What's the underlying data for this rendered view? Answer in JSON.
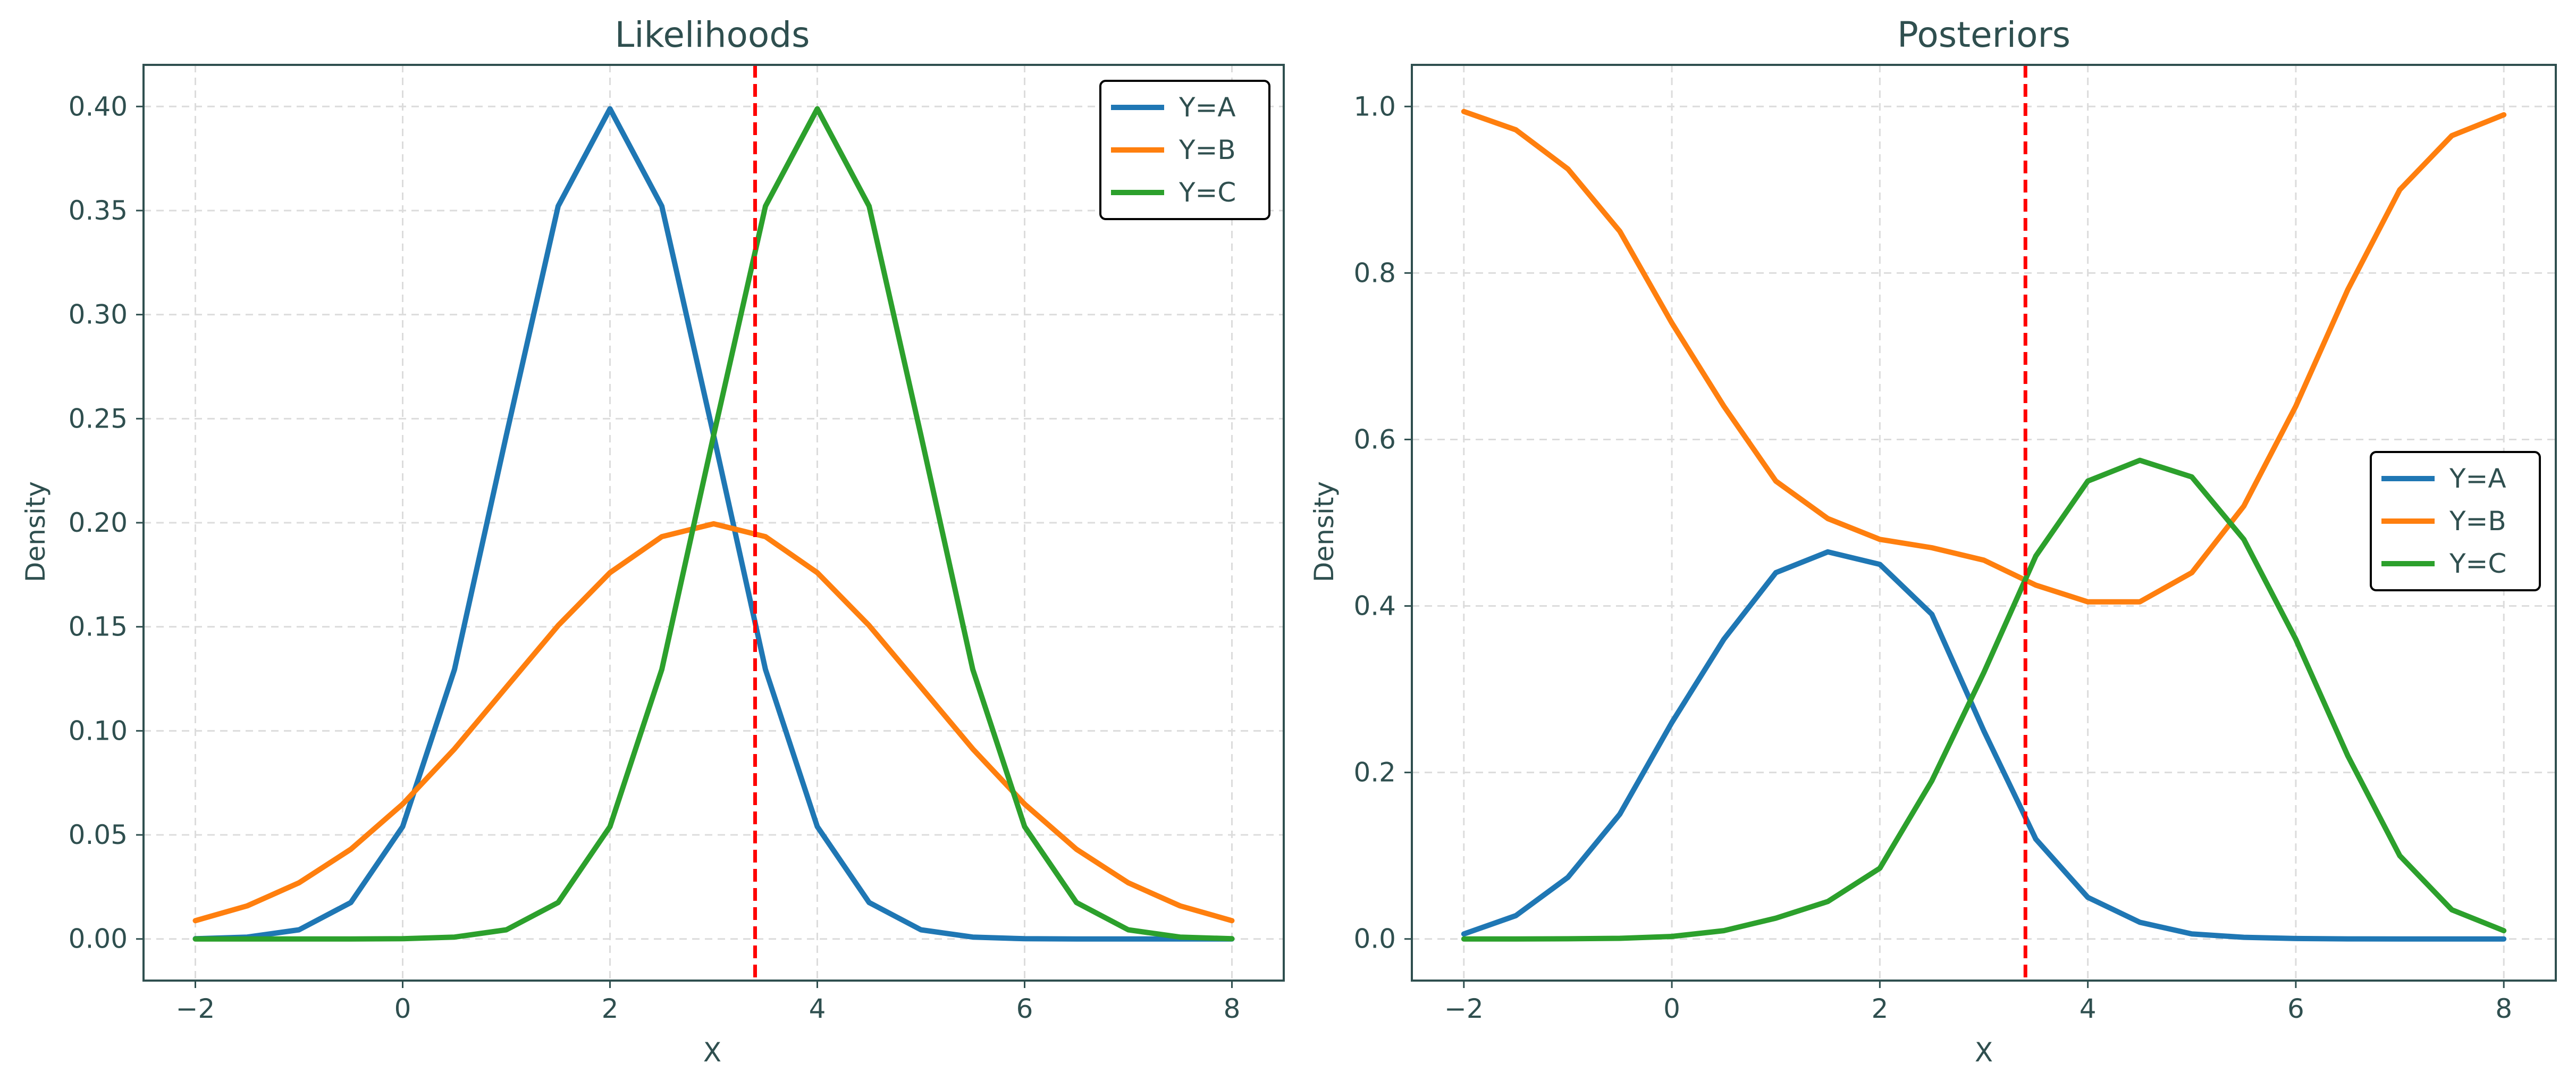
{
  "colors": {
    "series": {
      "Y=A": "#1f77b4",
      "Y=B": "#ff7f0e",
      "Y=C": "#2ca02c"
    },
    "threshold": "#ff0000",
    "axis": "#2f4f4f",
    "grid": "#dcdcdc"
  },
  "chart_data": [
    {
      "type": "line",
      "title": "Likelihoods",
      "xlabel": "X",
      "ylabel": "Density",
      "xlim": [
        -2.5,
        8.5
      ],
      "ylim": [
        -0.02,
        0.42
      ],
      "xticks": [
        -2,
        0,
        2,
        4,
        6,
        8
      ],
      "xtick_labels": [
        "−2",
        "0",
        "2",
        "4",
        "6",
        "8"
      ],
      "yticks": [
        0.0,
        0.05,
        0.1,
        0.15,
        0.2,
        0.25,
        0.3,
        0.35,
        0.4
      ],
      "ytick_labels": [
        "0.00",
        "0.05",
        "0.10",
        "0.15",
        "0.20",
        "0.25",
        "0.30",
        "0.35",
        "0.40"
      ],
      "grid": true,
      "legend": "top-right",
      "threshold_x": 3.4,
      "x": [
        -2,
        -1.5,
        -1,
        -0.5,
        0,
        0.5,
        1,
        1.5,
        2,
        2.5,
        3,
        3.5,
        4,
        4.5,
        5,
        5.5,
        6,
        6.5,
        7,
        7.5,
        8
      ],
      "series": [
        {
          "name": "Y=A",
          "values": [
            0.0001,
            0.0009,
            0.0044,
            0.0175,
            0.054,
            0.1295,
            0.242,
            0.3521,
            0.3989,
            0.3521,
            0.242,
            0.1295,
            0.054,
            0.0175,
            0.0044,
            0.0009,
            0.0001,
            0.0,
            0.0,
            0.0,
            0.0
          ]
        },
        {
          "name": "Y=B",
          "values": [
            0.0088,
            0.0159,
            0.027,
            0.0431,
            0.0648,
            0.0913,
            0.121,
            0.1506,
            0.176,
            0.1933,
            0.1995,
            0.1933,
            0.176,
            0.1506,
            0.121,
            0.0913,
            0.0648,
            0.0431,
            0.027,
            0.0159,
            0.0088
          ]
        },
        {
          "name": "Y=C",
          "values": [
            0.0,
            0.0,
            0.0,
            0.0,
            0.0001,
            0.0009,
            0.0044,
            0.0175,
            0.054,
            0.1295,
            0.242,
            0.3521,
            0.3989,
            0.3521,
            0.242,
            0.1295,
            0.054,
            0.0175,
            0.0044,
            0.0009,
            0.0001
          ]
        }
      ]
    },
    {
      "type": "line",
      "title": "Posteriors",
      "xlabel": "X",
      "ylabel": "Density",
      "xlim": [
        -2.5,
        8.5
      ],
      "ylim": [
        -0.05,
        1.05
      ],
      "xticks": [
        -2,
        0,
        2,
        4,
        6,
        8
      ],
      "xtick_labels": [
        "−2",
        "0",
        "2",
        "4",
        "6",
        "8"
      ],
      "yticks": [
        0.0,
        0.2,
        0.4,
        0.6,
        0.8,
        1.0
      ],
      "ytick_labels": [
        "0.0",
        "0.2",
        "0.4",
        "0.6",
        "0.8",
        "1.0"
      ],
      "grid": true,
      "legend": "center-right",
      "threshold_x": 3.4,
      "x": [
        -2,
        -1.5,
        -1,
        -0.5,
        0,
        0.5,
        1,
        1.5,
        2,
        2.5,
        3,
        3.5,
        4,
        4.5,
        5,
        5.5,
        6,
        6.5,
        7,
        7.5,
        8
      ],
      "series": [
        {
          "name": "Y=A",
          "values": [
            0.006,
            0.028,
            0.074,
            0.15,
            0.26,
            0.36,
            0.44,
            0.465,
            0.45,
            0.39,
            0.25,
            0.12,
            0.05,
            0.02,
            0.006,
            0.002,
            0.0005,
            0.0001,
            0.0,
            0.0,
            0.0
          ]
        },
        {
          "name": "Y=B",
          "values": [
            0.994,
            0.972,
            0.925,
            0.85,
            0.74,
            0.64,
            0.55,
            0.505,
            0.48,
            0.47,
            0.455,
            0.425,
            0.405,
            0.405,
            0.44,
            0.52,
            0.64,
            0.78,
            0.9,
            0.965,
            0.99
          ]
        },
        {
          "name": "Y=C",
          "values": [
            0.0,
            0.0,
            0.0002,
            0.0008,
            0.003,
            0.01,
            0.025,
            0.045,
            0.085,
            0.19,
            0.32,
            0.46,
            0.55,
            0.575,
            0.555,
            0.48,
            0.36,
            0.22,
            0.1,
            0.035,
            0.01
          ]
        }
      ]
    }
  ]
}
